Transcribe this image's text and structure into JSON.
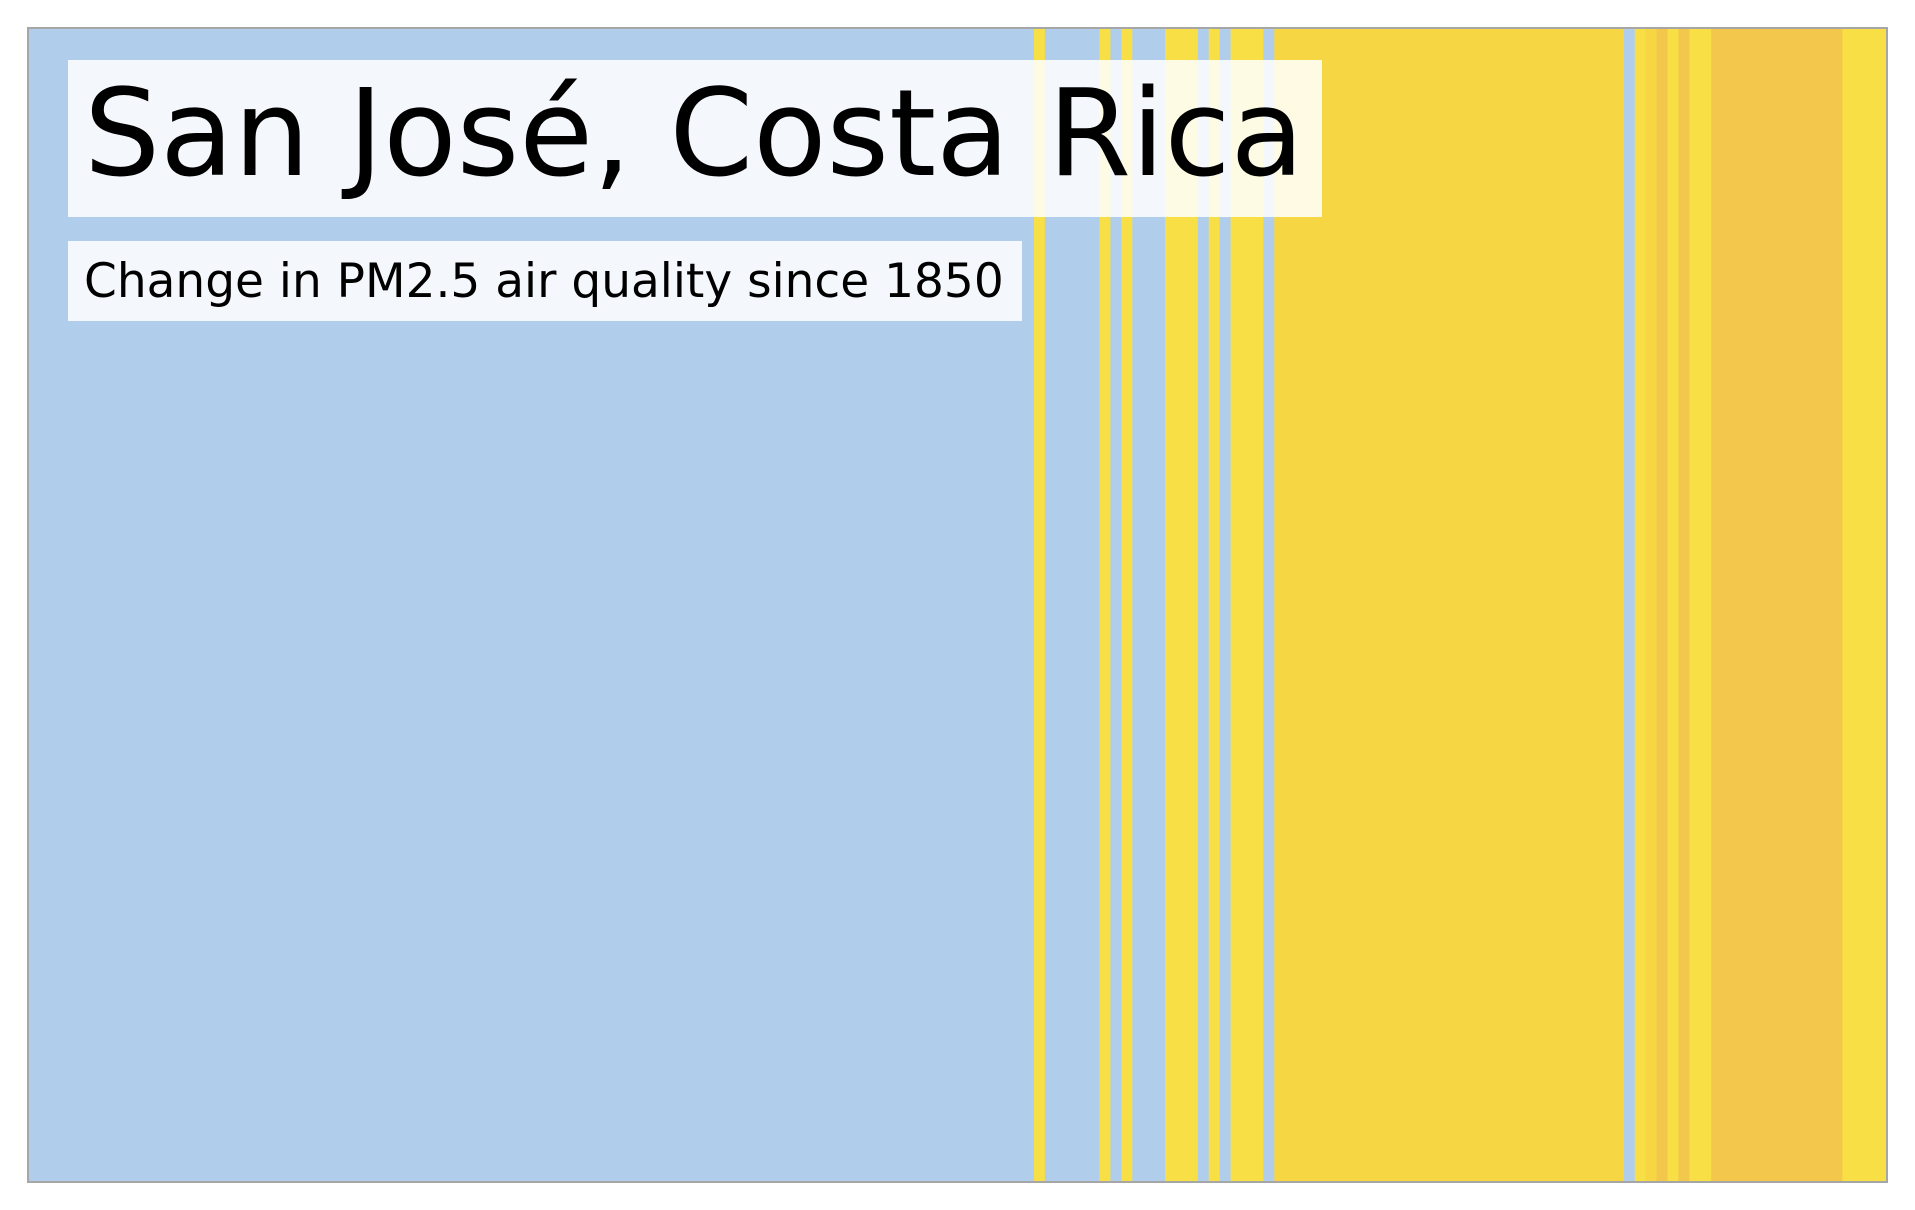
{
  "chart_data": {
    "type": "heatmap",
    "title": "San José, Costa Rica",
    "subtitle": "Change in PM2.5 air quality since 1850",
    "colors": {
      "improved": "#b0ceec",
      "slightly_worse": "#f7df45",
      "moderately_worse": "#f6d743",
      "worse": "#f2c74b",
      "frame": "#a6a6a6"
    },
    "x_range": [
      1850,
      2020
    ],
    "grid": false,
    "legend": "none",
    "segments": [
      {
        "start": 1850,
        "end": 1942,
        "level": "improved"
      },
      {
        "start": 1942,
        "end": 1943,
        "level": "slightly_worse"
      },
      {
        "start": 1943,
        "end": 1948,
        "level": "improved"
      },
      {
        "start": 1948,
        "end": 1949,
        "level": "slightly_worse"
      },
      {
        "start": 1949,
        "end": 1950,
        "level": "improved"
      },
      {
        "start": 1950,
        "end": 1951,
        "level": "slightly_worse"
      },
      {
        "start": 1951,
        "end": 1954,
        "level": "improved"
      },
      {
        "start": 1954,
        "end": 1957,
        "level": "slightly_worse"
      },
      {
        "start": 1957,
        "end": 1958,
        "level": "improved"
      },
      {
        "start": 1958,
        "end": 1959,
        "level": "slightly_worse"
      },
      {
        "start": 1959,
        "end": 1960,
        "level": "improved"
      },
      {
        "start": 1960,
        "end": 1963,
        "level": "slightly_worse"
      },
      {
        "start": 1963,
        "end": 1964,
        "level": "improved"
      },
      {
        "start": 1964,
        "end": 1996,
        "level": "moderately_worse"
      },
      {
        "start": 1996,
        "end": 1997,
        "level": "improved"
      },
      {
        "start": 1997,
        "end": 1998,
        "level": "slightly_worse"
      },
      {
        "start": 1998,
        "end": 1999,
        "level": "moderately_worse"
      },
      {
        "start": 1999,
        "end": 2000,
        "level": "worse"
      },
      {
        "start": 2000,
        "end": 2001,
        "level": "slightly_worse"
      },
      {
        "start": 2001,
        "end": 2002,
        "level": "worse"
      },
      {
        "start": 2002,
        "end": 2004,
        "level": "slightly_worse"
      },
      {
        "start": 2004,
        "end": 2016,
        "level": "worse"
      },
      {
        "start": 2016,
        "end": 2020,
        "level": "slightly_worse"
      }
    ]
  }
}
